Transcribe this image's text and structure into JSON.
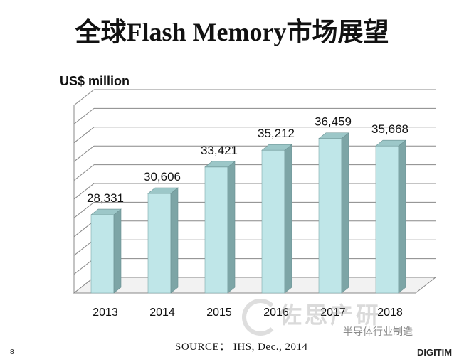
{
  "slide": {
    "title": "全球Flash Memory市场展望",
    "source": "SOURCE：  IHS, Dec., 2014",
    "page_number": "8"
  },
  "watermark": {
    "text": "佐思产研",
    "sub": "半导体行业制造",
    "brand": "DIGITIM"
  },
  "chart_data": {
    "type": "bar",
    "ylabel": "US$ million",
    "categories": [
      "2013",
      "2014",
      "2015",
      "2016",
      "2017",
      "2018"
    ],
    "values": [
      28331,
      30606,
      33421,
      35212,
      36459,
      35668
    ],
    "data_labels": [
      "28,331",
      "30,606",
      "33,421",
      "35,212",
      "36,459",
      "35,668"
    ],
    "ylim": [
      20000,
      40000
    ],
    "grid": true,
    "legend": "none",
    "bar_color": "#bfe6e8"
  }
}
